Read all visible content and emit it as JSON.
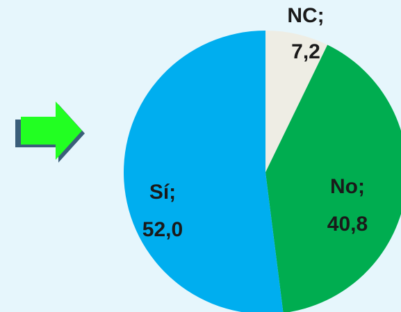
{
  "chart_data": {
    "type": "pie",
    "title": "",
    "start_angle_deg": 0,
    "direction": "clockwise",
    "slices": [
      {
        "label": "NC;",
        "value_label": "7,2",
        "value": 7.2,
        "color": "#eeede4"
      },
      {
        "label": "No;",
        "value_label": "40,8",
        "value": 40.8,
        "color": "#00ad50"
      },
      {
        "label": "Sí;",
        "value_label": "52,0",
        "value": 52.0,
        "color": "#00aeef"
      }
    ]
  },
  "decoration": {
    "arrow_icon": "right-arrow-icon",
    "arrow_fill": "#22ff22",
    "arrow_shadow": "#3b5e7a"
  }
}
